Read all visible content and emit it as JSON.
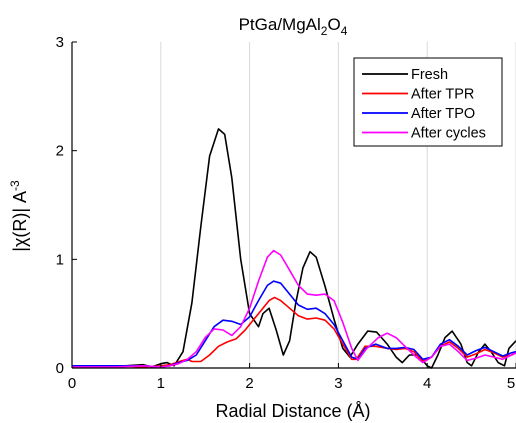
{
  "chart_data": {
    "type": "line",
    "title": {
      "prefix": "PtGa/MgAl",
      "sub1": "2",
      "mid": "O",
      "sub2": "4"
    },
    "xlabel": "Radial Distance (Å)",
    "ylabel": {
      "main": "|χ(R)| A",
      "sup": "-3"
    },
    "xlim": [
      0,
      5
    ],
    "ylim": [
      0,
      3
    ],
    "xticks": [
      0,
      1,
      2,
      3,
      4,
      5
    ],
    "yticks": [
      0,
      1,
      2,
      3
    ],
    "grid": "vertical",
    "legend_position": "top-right",
    "series": [
      {
        "name": "Fresh",
        "color": "#000000",
        "points": [
          [
            0,
            0.01
          ],
          [
            0.3,
            0.02
          ],
          [
            0.6,
            0.02
          ],
          [
            0.8,
            0.03
          ],
          [
            0.9,
            0.01
          ],
          [
            1.0,
            0.04
          ],
          [
            1.07,
            0.05
          ],
          [
            1.15,
            0.02
          ],
          [
            1.25,
            0.15
          ],
          [
            1.35,
            0.6
          ],
          [
            1.45,
            1.3
          ],
          [
            1.55,
            1.95
          ],
          [
            1.65,
            2.2
          ],
          [
            1.72,
            2.15
          ],
          [
            1.8,
            1.75
          ],
          [
            1.9,
            1.0
          ],
          [
            2.0,
            0.5
          ],
          [
            2.1,
            0.38
          ],
          [
            2.15,
            0.5
          ],
          [
            2.22,
            0.55
          ],
          [
            2.3,
            0.35
          ],
          [
            2.38,
            0.12
          ],
          [
            2.45,
            0.25
          ],
          [
            2.52,
            0.6
          ],
          [
            2.6,
            0.92
          ],
          [
            2.68,
            1.07
          ],
          [
            2.75,
            1.02
          ],
          [
            2.85,
            0.75
          ],
          [
            2.95,
            0.45
          ],
          [
            3.05,
            0.18
          ],
          [
            3.13,
            0.1
          ],
          [
            3.22,
            0.22
          ],
          [
            3.33,
            0.34
          ],
          [
            3.43,
            0.33
          ],
          [
            3.55,
            0.22
          ],
          [
            3.65,
            0.1
          ],
          [
            3.72,
            0.05
          ],
          [
            3.8,
            0.12
          ],
          [
            3.9,
            0.12
          ],
          [
            4.0,
            0.02
          ],
          [
            4.05,
            0.0
          ],
          [
            4.12,
            0.12
          ],
          [
            4.2,
            0.28
          ],
          [
            4.28,
            0.34
          ],
          [
            4.38,
            0.22
          ],
          [
            4.45,
            0.05
          ],
          [
            4.5,
            0.02
          ],
          [
            4.58,
            0.15
          ],
          [
            4.65,
            0.22
          ],
          [
            4.72,
            0.15
          ],
          [
            4.8,
            0.05
          ],
          [
            4.87,
            0.02
          ],
          [
            4.92,
            0.18
          ],
          [
            5.0,
            0.25
          ]
        ]
      },
      {
        "name": "After TPR",
        "color": "#ff0000",
        "points": [
          [
            0,
            0.02
          ],
          [
            0.5,
            0.02
          ],
          [
            0.8,
            0.01
          ],
          [
            1.0,
            0.02
          ],
          [
            1.1,
            0.03
          ],
          [
            1.25,
            0.07
          ],
          [
            1.3,
            0.08
          ],
          [
            1.35,
            0.06
          ],
          [
            1.45,
            0.06
          ],
          [
            1.55,
            0.12
          ],
          [
            1.65,
            0.2
          ],
          [
            1.75,
            0.24
          ],
          [
            1.85,
            0.27
          ],
          [
            1.95,
            0.35
          ],
          [
            2.05,
            0.45
          ],
          [
            2.15,
            0.55
          ],
          [
            2.22,
            0.62
          ],
          [
            2.28,
            0.65
          ],
          [
            2.35,
            0.62
          ],
          [
            2.45,
            0.55
          ],
          [
            2.55,
            0.48
          ],
          [
            2.65,
            0.45
          ],
          [
            2.75,
            0.46
          ],
          [
            2.85,
            0.44
          ],
          [
            2.95,
            0.36
          ],
          [
            3.05,
            0.22
          ],
          [
            3.15,
            0.08
          ],
          [
            3.2,
            0.08
          ],
          [
            3.3,
            0.2
          ],
          [
            3.42,
            0.2
          ],
          [
            3.55,
            0.18
          ],
          [
            3.65,
            0.17
          ],
          [
            3.75,
            0.18
          ],
          [
            3.85,
            0.15
          ],
          [
            3.95,
            0.06
          ],
          [
            4.05,
            0.1
          ],
          [
            4.15,
            0.2
          ],
          [
            4.25,
            0.24
          ],
          [
            4.35,
            0.18
          ],
          [
            4.45,
            0.1
          ],
          [
            4.55,
            0.13
          ],
          [
            4.65,
            0.17
          ],
          [
            4.75,
            0.14
          ],
          [
            4.85,
            0.1
          ],
          [
            4.95,
            0.12
          ],
          [
            5.0,
            0.14
          ]
        ]
      },
      {
        "name": "After TPO",
        "color": "#0000ff",
        "points": [
          [
            0,
            0.02
          ],
          [
            0.5,
            0.02
          ],
          [
            0.8,
            0.02
          ],
          [
            1.0,
            0.01
          ],
          [
            1.1,
            0.02
          ],
          [
            1.2,
            0.05
          ],
          [
            1.3,
            0.07
          ],
          [
            1.4,
            0.12
          ],
          [
            1.5,
            0.25
          ],
          [
            1.6,
            0.38
          ],
          [
            1.7,
            0.44
          ],
          [
            1.8,
            0.43
          ],
          [
            1.9,
            0.4
          ],
          [
            2.0,
            0.47
          ],
          [
            2.1,
            0.62
          ],
          [
            2.2,
            0.76
          ],
          [
            2.27,
            0.8
          ],
          [
            2.35,
            0.78
          ],
          [
            2.45,
            0.68
          ],
          [
            2.55,
            0.58
          ],
          [
            2.65,
            0.54
          ],
          [
            2.75,
            0.55
          ],
          [
            2.85,
            0.5
          ],
          [
            2.95,
            0.4
          ],
          [
            3.05,
            0.25
          ],
          [
            3.15,
            0.1
          ],
          [
            3.22,
            0.08
          ],
          [
            3.3,
            0.18
          ],
          [
            3.42,
            0.22
          ],
          [
            3.55,
            0.18
          ],
          [
            3.65,
            0.18
          ],
          [
            3.75,
            0.19
          ],
          [
            3.85,
            0.17
          ],
          [
            3.95,
            0.08
          ],
          [
            4.05,
            0.1
          ],
          [
            4.15,
            0.22
          ],
          [
            4.25,
            0.26
          ],
          [
            4.35,
            0.2
          ],
          [
            4.45,
            0.12
          ],
          [
            4.55,
            0.16
          ],
          [
            4.65,
            0.19
          ],
          [
            4.75,
            0.15
          ],
          [
            4.85,
            0.11
          ],
          [
            4.95,
            0.14
          ],
          [
            5.0,
            0.15
          ]
        ]
      },
      {
        "name": "After cycles",
        "color": "#ff00ff",
        "points": [
          [
            0,
            0.01
          ],
          [
            0.5,
            0.01
          ],
          [
            0.8,
            0.02
          ],
          [
            1.0,
            0.01
          ],
          [
            1.1,
            0.02
          ],
          [
            1.2,
            0.04
          ],
          [
            1.3,
            0.08
          ],
          [
            1.4,
            0.15
          ],
          [
            1.5,
            0.28
          ],
          [
            1.6,
            0.36
          ],
          [
            1.7,
            0.35
          ],
          [
            1.8,
            0.3
          ],
          [
            1.9,
            0.38
          ],
          [
            2.0,
            0.55
          ],
          [
            2.1,
            0.8
          ],
          [
            2.2,
            1.02
          ],
          [
            2.27,
            1.08
          ],
          [
            2.35,
            1.04
          ],
          [
            2.45,
            0.9
          ],
          [
            2.55,
            0.76
          ],
          [
            2.65,
            0.68
          ],
          [
            2.75,
            0.67
          ],
          [
            2.85,
            0.68
          ],
          [
            2.95,
            0.62
          ],
          [
            3.05,
            0.42
          ],
          [
            3.15,
            0.18
          ],
          [
            3.22,
            0.07
          ],
          [
            3.32,
            0.18
          ],
          [
            3.45,
            0.28
          ],
          [
            3.55,
            0.32
          ],
          [
            3.65,
            0.28
          ],
          [
            3.75,
            0.2
          ],
          [
            3.85,
            0.12
          ],
          [
            3.95,
            0.05
          ],
          [
            4.05,
            0.1
          ],
          [
            4.15,
            0.2
          ],
          [
            4.25,
            0.22
          ],
          [
            4.35,
            0.15
          ],
          [
            4.45,
            0.07
          ],
          [
            4.55,
            0.09
          ],
          [
            4.65,
            0.12
          ],
          [
            4.75,
            0.1
          ],
          [
            4.85,
            0.08
          ],
          [
            4.95,
            0.12
          ],
          [
            5.0,
            0.14
          ]
        ]
      }
    ]
  }
}
